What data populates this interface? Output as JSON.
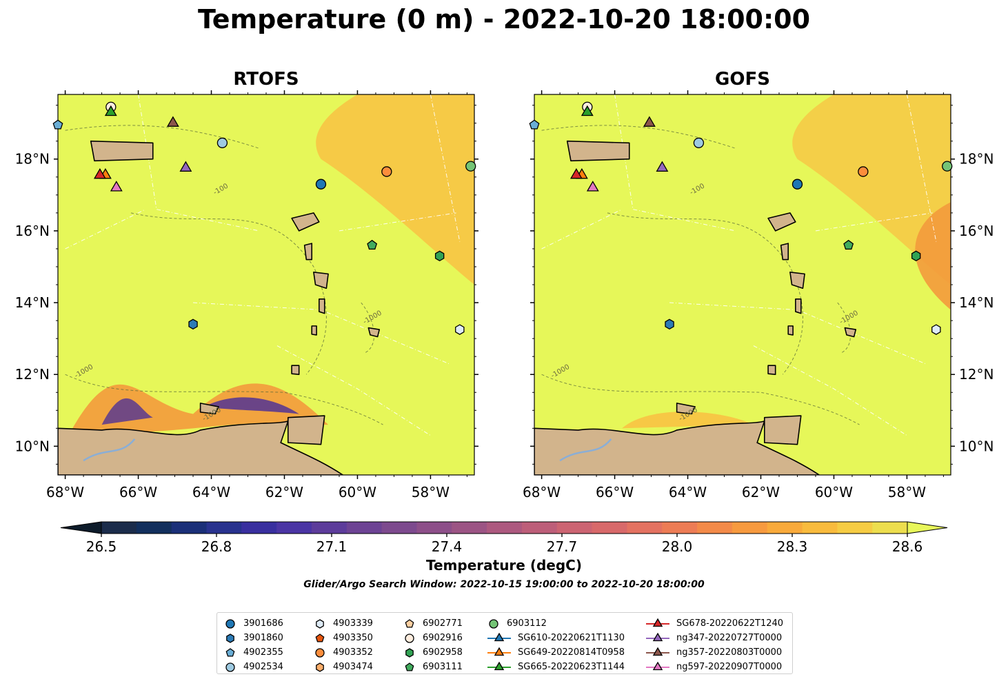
{
  "title": "Temperature (0 m) - 2022-10-20 18:00:00",
  "colors": {
    "land": "#d2b48c",
    "sea": "#e6f759",
    "warm": "#f8c243",
    "orange": "#f39a3c",
    "purple": "#5b3a8f",
    "river": "#8aaed6"
  },
  "colorbar": {
    "label": "Temperature (degC)",
    "ticks": [
      "26.5",
      "26.8",
      "27.1",
      "27.4",
      "27.7",
      "28.0",
      "28.3",
      "28.6"
    ],
    "range": [
      26.5,
      28.6
    ],
    "extend": "both",
    "colors": [
      "#1b2c4b",
      "#122f5d",
      "#1a2f78",
      "#28328e",
      "#392f9f",
      "#4b35a4",
      "#5d3c9b",
      "#6d4394",
      "#7d4a8e",
      "#8d4f89",
      "#9c5484",
      "#ad597f",
      "#bd5e79",
      "#cc6472",
      "#d8696a",
      "#e47261",
      "#ed7c55",
      "#f38a49",
      "#f79a3f",
      "#f9aa3b",
      "#f9bb3d",
      "#f6cc44",
      "#edde4e"
    ]
  },
  "search_window": "Glider/Argo Search Window: 2022-10-15 19:00:00 to 2022-10-20 18:00:00",
  "chart_data": [
    {
      "type": "map",
      "title": "RTOFS",
      "x_ticks": [
        "68°W",
        "66°W",
        "64°W",
        "62°W",
        "60°W",
        "58°W"
      ],
      "y_ticks": [
        "10°N",
        "12°N",
        "14°N",
        "16°N",
        "18°N"
      ],
      "xlim": [
        -68.2,
        -56.8
      ],
      "ylim": [
        9.2,
        19.8
      ],
      "contour_labels": [
        "-100",
        "-1000"
      ]
    },
    {
      "type": "map",
      "title": "GOFS",
      "x_ticks": [
        "68°W",
        "66°W",
        "64°W",
        "62°W",
        "60°W",
        "58°W"
      ],
      "y_ticks": [
        "10°N",
        "12°N",
        "14°N",
        "16°N",
        "18°N"
      ],
      "xlim": [
        -68.2,
        -56.8
      ],
      "ylim": [
        9.2,
        19.8
      ],
      "contour_labels": [
        "-100",
        "-1000"
      ]
    }
  ],
  "platforms": [
    {
      "id": "3901686",
      "marker": "circle",
      "color": "#1f77b4",
      "lon": -61.0,
      "lat": 17.3
    },
    {
      "id": "3901860",
      "marker": "hexagon",
      "color": "#2c7bb6",
      "lon": -64.5,
      "lat": 13.4
    },
    {
      "id": "4902355",
      "marker": "pentagon",
      "color": "#6aaed6",
      "lon": -68.2,
      "lat": 18.95
    },
    {
      "id": "4902534",
      "marker": "circle",
      "color": "#9ecae1",
      "lon": -63.7,
      "lat": 18.45
    },
    {
      "id": "4903339",
      "marker": "hexagon",
      "color": "#deebf7",
      "lon": -57.2,
      "lat": 13.25
    },
    {
      "id": "4903350",
      "marker": "pentagon",
      "color": "#e6550d",
      "lon": null,
      "lat": null
    },
    {
      "id": "4903352",
      "marker": "circle",
      "color": "#fd8d3c",
      "lon": -59.2,
      "lat": 17.65
    },
    {
      "id": "4903474",
      "marker": "hexagon",
      "color": "#fdae6b",
      "lon": null,
      "lat": null
    },
    {
      "id": "6902771",
      "marker": "pentagon",
      "color": "#fdd0a2",
      "lon": null,
      "lat": null
    },
    {
      "id": "6902916",
      "marker": "circle",
      "color": "#feedde",
      "lon": -66.75,
      "lat": 19.45
    },
    {
      "id": "6902958",
      "marker": "hexagon",
      "color": "#31a354",
      "lon": -57.75,
      "lat": 15.3
    },
    {
      "id": "6903111",
      "marker": "pentagon",
      "color": "#41ab5d",
      "lon": -59.6,
      "lat": 15.6
    },
    {
      "id": "6903112",
      "marker": "circle",
      "color": "#74c476",
      "lon": -56.9,
      "lat": 17.8
    },
    {
      "id": "SG610-20220621T1130",
      "marker": "triangle",
      "color": "#1f77b4",
      "lon": null,
      "lat": null
    },
    {
      "id": "SG649-20220814T0958",
      "marker": "triangle",
      "color": "#ff7f0e",
      "lon": -66.9,
      "lat": 17.55
    },
    {
      "id": "SG665-20220623T1144",
      "marker": "triangle",
      "color": "#2ca02c",
      "lon": -66.75,
      "lat": 19.3
    },
    {
      "id": "SG678-20220622T1240",
      "marker": "triangle",
      "color": "#d62728",
      "lon": -67.05,
      "lat": 17.55
    },
    {
      "id": "ng347-20220727T0000",
      "marker": "triangle",
      "color": "#9467bd",
      "lon": -64.7,
      "lat": 17.75
    },
    {
      "id": "ng357-20220803T0000",
      "marker": "triangle",
      "color": "#8c564b",
      "lon": -65.05,
      "lat": 19.0
    },
    {
      "id": "ng597-20220907T0000",
      "marker": "triangle",
      "color": "#e377c2",
      "lon": -66.6,
      "lat": 17.2
    }
  ]
}
